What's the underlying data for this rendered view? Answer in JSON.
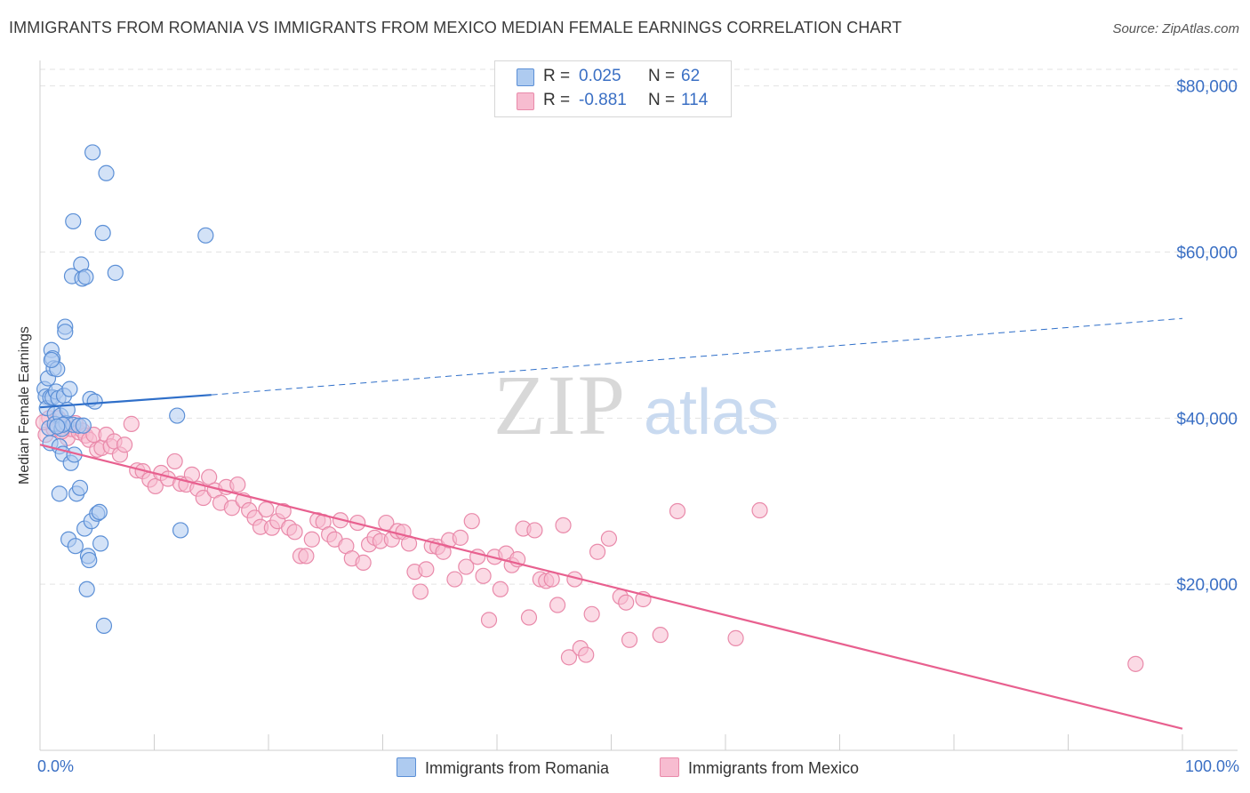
{
  "title": "IMMIGRANTS FROM ROMANIA VS IMMIGRANTS FROM MEXICO MEDIAN FEMALE EARNINGS CORRELATION CHART",
  "source": "Source: ZipAtlas.com",
  "watermark": {
    "zip": "ZIP",
    "atlas": "atlas"
  },
  "legend_top": {
    "romania": {
      "r_label": "R =",
      "r_value": "0.025",
      "n_label": "N =",
      "n_value": "62"
    },
    "mexico": {
      "r_label": "R =",
      "r_value": "-0.881",
      "n_label": "N =",
      "n_value": "114"
    }
  },
  "colors": {
    "romania_fill": "#aecbf0",
    "romania_stroke": "#5b8fd6",
    "romania_line": "#2f6fc9",
    "mexico_fill": "#f7bcd0",
    "mexico_stroke": "#e98aaa",
    "mexico_line": "#e8608f",
    "grid": "#e3e3e3",
    "axis_text": "#3a6fc4"
  },
  "chart_data": {
    "type": "scatter",
    "title": "IMMIGRANTS FROM ROMANIA VS IMMIGRANTS FROM MEXICO MEDIAN FEMALE EARNINGS CORRELATION CHART",
    "xlabel": "",
    "ylabel": "Median Female Earnings",
    "x_tick_labels": [
      "0.0%",
      "100.0%"
    ],
    "y_tick_labels": [
      "$20,000",
      "$40,000",
      "$60,000",
      "$80,000"
    ],
    "y_ticks": [
      20000,
      40000,
      60000,
      80000
    ],
    "xlim": [
      0,
      100
    ],
    "ylim": [
      0,
      82000
    ],
    "grid": true,
    "legend_position": "bottom",
    "series": [
      {
        "name": "Immigrants from Romania",
        "R": 0.025,
        "N": 62,
        "trend": {
          "x": [
            0,
            15
          ],
          "y": [
            41300,
            42800
          ],
          "dashed_extension": {
            "x": [
              15,
              100
            ],
            "y": [
              42800,
              52000
            ]
          }
        },
        "points": [
          [
            0.4,
            43500
          ],
          [
            0.5,
            42600
          ],
          [
            0.6,
            41200
          ],
          [
            0.7,
            44800
          ],
          [
            0.8,
            38800
          ],
          [
            0.9,
            42500
          ],
          [
            0.9,
            37000
          ],
          [
            1.0,
            48200
          ],
          [
            1.1,
            47200
          ],
          [
            1.1,
            42500
          ],
          [
            1.2,
            46000
          ],
          [
            1.3,
            40500
          ],
          [
            1.3,
            39300
          ],
          [
            1.4,
            43200
          ],
          [
            1.5,
            45900
          ],
          [
            1.6,
            42400
          ],
          [
            1.7,
            30900
          ],
          [
            1.7,
            36600
          ],
          [
            1.8,
            40300
          ],
          [
            1.9,
            38700
          ],
          [
            2.0,
            35700
          ],
          [
            2.1,
            42700
          ],
          [
            2.2,
            51000
          ],
          [
            2.2,
            50400
          ],
          [
            2.3,
            39400
          ],
          [
            2.4,
            41000
          ],
          [
            2.5,
            25400
          ],
          [
            2.6,
            43500
          ],
          [
            2.7,
            34600
          ],
          [
            2.8,
            57100
          ],
          [
            2.9,
            63700
          ],
          [
            2.9,
            39200
          ],
          [
            3.0,
            35600
          ],
          [
            3.1,
            24600
          ],
          [
            3.2,
            30900
          ],
          [
            3.4,
            39100
          ],
          [
            3.5,
            31600
          ],
          [
            3.6,
            58500
          ],
          [
            3.7,
            56800
          ],
          [
            3.8,
            39100
          ],
          [
            3.9,
            26700
          ],
          [
            4.0,
            57000
          ],
          [
            4.1,
            19400
          ],
          [
            4.2,
            23400
          ],
          [
            4.3,
            22900
          ],
          [
            4.4,
            42300
          ],
          [
            4.5,
            27600
          ],
          [
            4.6,
            72000
          ],
          [
            4.8,
            42000
          ],
          [
            5.0,
            28500
          ],
          [
            5.2,
            28700
          ],
          [
            5.3,
            24900
          ],
          [
            5.5,
            62300
          ],
          [
            5.6,
            15000
          ],
          [
            5.8,
            69500
          ],
          [
            6.6,
            57500
          ],
          [
            12.0,
            40300
          ],
          [
            12.3,
            26500
          ],
          [
            14.5,
            62000
          ],
          [
            2.0,
            39200
          ],
          [
            1.5,
            39000
          ],
          [
            1.0,
            47000
          ]
        ]
      },
      {
        "name": "Immigrants from Mexico",
        "R": -0.881,
        "N": 114,
        "trend": {
          "x": [
            0,
            100
          ],
          "y": [
            36800,
            2600
          ]
        },
        "points": [
          [
            0.5,
            38000
          ],
          [
            0.8,
            40000
          ],
          [
            1.2,
            38700
          ],
          [
            1.6,
            40000
          ],
          [
            2.0,
            39000
          ],
          [
            2.4,
            37600
          ],
          [
            2.7,
            38700
          ],
          [
            3.1,
            39400
          ],
          [
            3.4,
            38300
          ],
          [
            3.7,
            38500
          ],
          [
            4.0,
            37900
          ],
          [
            4.3,
            37400
          ],
          [
            4.7,
            38000
          ],
          [
            5.0,
            36200
          ],
          [
            5.4,
            36400
          ],
          [
            5.8,
            38000
          ],
          [
            6.2,
            36600
          ],
          [
            6.5,
            37200
          ],
          [
            7.0,
            35600
          ],
          [
            7.4,
            36800
          ],
          [
            8.0,
            39300
          ],
          [
            8.5,
            33700
          ],
          [
            9.0,
            33600
          ],
          [
            9.6,
            32600
          ],
          [
            10.1,
            31800
          ],
          [
            10.6,
            33400
          ],
          [
            11.2,
            32700
          ],
          [
            11.8,
            34800
          ],
          [
            12.3,
            32100
          ],
          [
            12.8,
            32000
          ],
          [
            13.3,
            33200
          ],
          [
            13.8,
            31500
          ],
          [
            14.3,
            30400
          ],
          [
            14.8,
            32900
          ],
          [
            15.3,
            31300
          ],
          [
            15.8,
            29800
          ],
          [
            16.3,
            31700
          ],
          [
            16.8,
            29200
          ],
          [
            17.3,
            32000
          ],
          [
            17.8,
            30100
          ],
          [
            18.3,
            28900
          ],
          [
            18.8,
            28000
          ],
          [
            19.3,
            26900
          ],
          [
            19.8,
            29000
          ],
          [
            20.3,
            26800
          ],
          [
            20.8,
            27600
          ],
          [
            21.3,
            28800
          ],
          [
            21.8,
            26800
          ],
          [
            22.3,
            26300
          ],
          [
            22.8,
            23400
          ],
          [
            23.3,
            23400
          ],
          [
            23.8,
            25400
          ],
          [
            24.3,
            27700
          ],
          [
            24.8,
            27500
          ],
          [
            25.3,
            26000
          ],
          [
            25.8,
            25400
          ],
          [
            26.3,
            27700
          ],
          [
            26.8,
            24600
          ],
          [
            27.3,
            23100
          ],
          [
            27.8,
            27400
          ],
          [
            28.3,
            22600
          ],
          [
            28.8,
            24800
          ],
          [
            29.3,
            25600
          ],
          [
            29.8,
            25200
          ],
          [
            30.3,
            27400
          ],
          [
            30.8,
            25400
          ],
          [
            31.3,
            26400
          ],
          [
            31.8,
            26300
          ],
          [
            32.3,
            24900
          ],
          [
            32.8,
            21500
          ],
          [
            33.3,
            19100
          ],
          [
            33.8,
            21800
          ],
          [
            34.3,
            24600
          ],
          [
            34.8,
            24500
          ],
          [
            35.3,
            23900
          ],
          [
            35.8,
            25300
          ],
          [
            36.3,
            20600
          ],
          [
            36.8,
            25600
          ],
          [
            37.3,
            22100
          ],
          [
            37.8,
            27600
          ],
          [
            38.3,
            23300
          ],
          [
            38.8,
            21000
          ],
          [
            39.3,
            15700
          ],
          [
            39.8,
            23300
          ],
          [
            40.3,
            19400
          ],
          [
            40.8,
            23700
          ],
          [
            41.3,
            22300
          ],
          [
            41.8,
            23000
          ],
          [
            42.3,
            26700
          ],
          [
            42.8,
            16000
          ],
          [
            43.3,
            26500
          ],
          [
            43.8,
            20600
          ],
          [
            44.3,
            20400
          ],
          [
            44.8,
            20600
          ],
          [
            45.3,
            17500
          ],
          [
            45.8,
            27100
          ],
          [
            46.3,
            11200
          ],
          [
            46.8,
            20600
          ],
          [
            47.3,
            12300
          ],
          [
            47.8,
            11500
          ],
          [
            48.3,
            16400
          ],
          [
            48.8,
            23900
          ],
          [
            49.8,
            25500
          ],
          [
            50.8,
            18500
          ],
          [
            51.3,
            17800
          ],
          [
            51.6,
            13300
          ],
          [
            52.8,
            18200
          ],
          [
            54.3,
            13900
          ],
          [
            55.8,
            28800
          ],
          [
            60.9,
            13500
          ],
          [
            63.0,
            28900
          ],
          [
            95.9,
            10400
          ],
          [
            0.3,
            39500
          ],
          [
            1.9,
            38400
          ]
        ]
      }
    ]
  },
  "legend_bottom": {
    "romania": "Immigrants from Romania",
    "mexico": "Immigrants from Mexico"
  }
}
